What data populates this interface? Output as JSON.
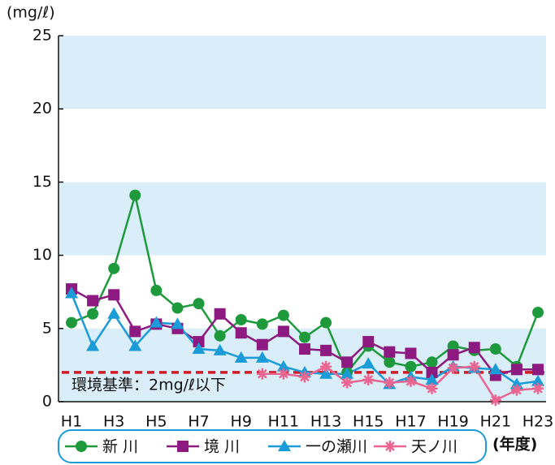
{
  "chart_data": {
    "type": "line",
    "y_unit": "(mg/ℓ)",
    "x_unit": "(年度)",
    "categories": [
      "H1",
      null,
      "H3",
      null,
      "H5",
      null,
      "H7",
      null,
      "H9",
      null,
      "H11",
      null,
      "H13",
      null,
      "H15",
      null,
      "H17",
      null,
      "H19",
      null,
      "H21",
      null,
      "H23"
    ],
    "ylim": [
      0,
      25
    ],
    "yticks": [
      0,
      5,
      10,
      15,
      20,
      25
    ],
    "standard": {
      "value": 2,
      "label": "環境基準：2mg/ℓ以下",
      "color": "#d01c24"
    },
    "series": [
      {
        "name": "新 川",
        "color": "#1e9a3c",
        "marker": "circle",
        "values": [
          5.4,
          6.0,
          9.1,
          14.1,
          7.6,
          6.4,
          6.7,
          4.5,
          5.6,
          5.3,
          5.9,
          4.4,
          5.4,
          2.0,
          3.8,
          2.7,
          2.4,
          2.7,
          3.8,
          3.5,
          3.6,
          2.4,
          6.1
        ]
      },
      {
        "name": "境 川",
        "color": "#8c1a80",
        "marker": "square",
        "values": [
          7.7,
          6.9,
          7.3,
          4.8,
          5.3,
          5.0,
          4.1,
          6.0,
          4.7,
          3.9,
          4.8,
          3.6,
          3.5,
          2.7,
          4.1,
          3.4,
          3.3,
          2.0,
          3.2,
          3.7,
          1.8,
          2.2,
          2.2
        ]
      },
      {
        "name": "一の瀬川",
        "color": "#1b9bd7",
        "marker": "triangle",
        "values": [
          7.4,
          3.8,
          6.0,
          3.8,
          5.4,
          5.3,
          3.6,
          3.5,
          3.0,
          3.0,
          2.4,
          2.0,
          1.9,
          1.9,
          2.6,
          1.2,
          1.7,
          1.5,
          2.4,
          2.3,
          2.2,
          1.2,
          1.4
        ]
      },
      {
        "name": "天ノ川",
        "color": "#ea6590",
        "marker": "asterisk",
        "values": [
          null,
          null,
          null,
          null,
          null,
          null,
          null,
          null,
          null,
          1.9,
          1.9,
          1.7,
          2.4,
          1.3,
          1.5,
          1.3,
          1.4,
          0.9,
          2.3,
          2.4,
          0.1,
          0.8,
          0.9
        ]
      }
    ]
  }
}
